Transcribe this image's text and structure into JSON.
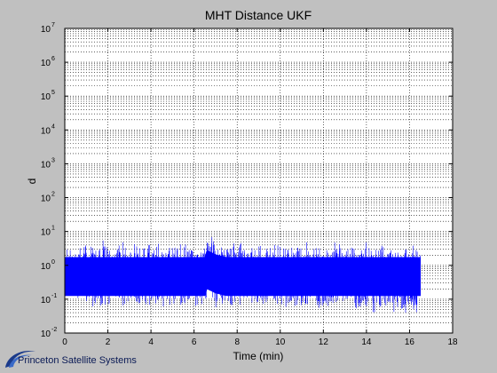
{
  "window": {
    "background": "#c0c0c0"
  },
  "chart_data": {
    "type": "line",
    "title": "MHT Distance UKF",
    "xlabel": "Time (min)",
    "ylabel": "d",
    "xlim": [
      0,
      18
    ],
    "ylim": [
      0.01,
      10000000
    ],
    "yscale": "log",
    "xticks": [
      "0",
      "2",
      "4",
      "6",
      "8",
      "10",
      "12",
      "14",
      "16",
      "18"
    ],
    "yticks": [
      {
        "base": "10",
        "exp": "-2"
      },
      {
        "base": "10",
        "exp": "-1"
      },
      {
        "base": "10",
        "exp": "0"
      },
      {
        "base": "10",
        "exp": "1"
      },
      {
        "base": "10",
        "exp": "2"
      },
      {
        "base": "10",
        "exp": "3"
      },
      {
        "base": "10",
        "exp": "4"
      },
      {
        "base": "10",
        "exp": "5"
      },
      {
        "base": "10",
        "exp": "6"
      },
      {
        "base": "10",
        "exp": "7"
      }
    ],
    "grid": true,
    "grid_minor": true,
    "series_color": "#0000ff",
    "series": [
      {
        "x": [
          0.0,
          0.5,
          1.0,
          1.5,
          2.0,
          2.5,
          3.0,
          3.5,
          4.0,
          4.5,
          5.0,
          5.5,
          6.0,
          6.5,
          6.6,
          7.0,
          7.5,
          8.0,
          8.5,
          9.0,
          9.5,
          10.0,
          10.5,
          11.0,
          11.5,
          12.0,
          12.5,
          13.0,
          13.5,
          14.0,
          14.5,
          15.0,
          15.5,
          16.0,
          16.5
        ],
        "upper": [
          5,
          6,
          5,
          7,
          5,
          6,
          5,
          5,
          6,
          5,
          5,
          6,
          5,
          6,
          11,
          7,
          5,
          6,
          5,
          5,
          6,
          5,
          5,
          6,
          5,
          5,
          5,
          5,
          5,
          6,
          5,
          5,
          5,
          5,
          5
        ],
        "lower": [
          0.15,
          0.1,
          0.05,
          0.04,
          0.05,
          0.05,
          0.06,
          0.05,
          0.05,
          0.05,
          0.06,
          0.05,
          0.05,
          0.06,
          0.1,
          0.05,
          0.06,
          0.05,
          0.05,
          0.04,
          0.05,
          0.05,
          0.05,
          0.04,
          0.04,
          0.04,
          0.04,
          0.04,
          0.035,
          0.035,
          0.035,
          0.025,
          0.03,
          0.03,
          0.02
        ],
        "median": [
          0.5,
          0.5,
          0.5,
          0.5,
          0.5,
          0.5,
          0.5,
          0.5,
          0.5,
          0.5,
          0.5,
          0.5,
          0.5,
          0.5,
          0.8,
          0.6,
          0.5,
          0.5,
          0.5,
          0.5,
          0.5,
          0.5,
          0.5,
          0.5,
          0.5,
          0.5,
          0.5,
          0.5,
          0.5,
          0.5,
          0.5,
          0.5,
          0.5,
          0.5,
          0.5
        ]
      }
    ]
  },
  "footer": {
    "logo_text": "Princeton Satellite Systems",
    "logo_color": "#1a3a8a"
  }
}
